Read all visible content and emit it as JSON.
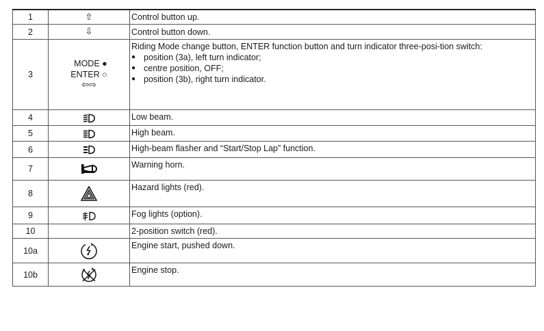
{
  "rows": [
    {
      "num": "1",
      "desc": "Control button up.",
      "icon": "arrow-up-icon",
      "glyph": "⇧"
    },
    {
      "num": "2",
      "desc": "Control button down.",
      "icon": "arrow-down-icon",
      "glyph": "⇩"
    },
    {
      "num": "3",
      "desc": "Riding Mode change button, ENTER function button and turn indicator three-posi-tion switch:",
      "sym_lines": [
        "MODE ●",
        "ENTER ○",
        "⇦⇨"
      ],
      "bullets": [
        "position (3a), left turn indicator;",
        "centre position, OFF;",
        "position (3b), right turn indicator."
      ]
    },
    {
      "num": "4",
      "desc": "Low beam.",
      "icon": "low-beam-icon"
    },
    {
      "num": "5",
      "desc": "High beam.",
      "icon": "high-beam-icon"
    },
    {
      "num": "6",
      "desc": "High-beam flasher and “Start/Stop Lap” function.",
      "icon": "high-beam-flasher-icon"
    },
    {
      "num": "7",
      "desc": "Warning horn.",
      "icon": "horn-icon"
    },
    {
      "num": "8",
      "desc": "Hazard lights (red).",
      "icon": "hazard-icon"
    },
    {
      "num": "9",
      "desc": "Fog lights (option).",
      "icon": "fog-light-icon"
    },
    {
      "num": "10",
      "desc": "2-position switch (red)."
    },
    {
      "num": "10a",
      "desc": "Engine start, pushed down.",
      "icon": "engine-start-icon"
    },
    {
      "num": "10b",
      "desc": "Engine stop.",
      "icon": "engine-stop-icon"
    }
  ]
}
